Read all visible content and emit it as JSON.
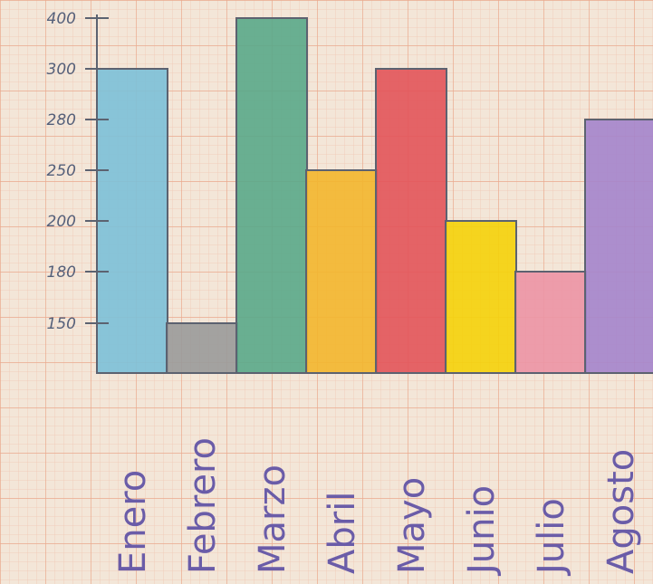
{
  "chart_data": {
    "type": "bar",
    "title": "",
    "xlabel": "",
    "ylabel": "",
    "categories": [
      "Enero",
      "Febrero",
      "Marzo",
      "Abril",
      "Mayo",
      "Junio",
      "Julio",
      "Agosto"
    ],
    "values": [
      300,
      150,
      400,
      250,
      300,
      200,
      180,
      280
    ],
    "colors": [
      "#7cc0d8",
      "#9a9a9a",
      "#5aa88a",
      "#f3b62e",
      "#e2545a",
      "#f5d20a",
      "#ec93a5",
      "#a484cc"
    ],
    "y_ticks": [
      "150",
      "180",
      "200",
      "250",
      "280",
      "300",
      "400"
    ],
    "grid": true
  }
}
